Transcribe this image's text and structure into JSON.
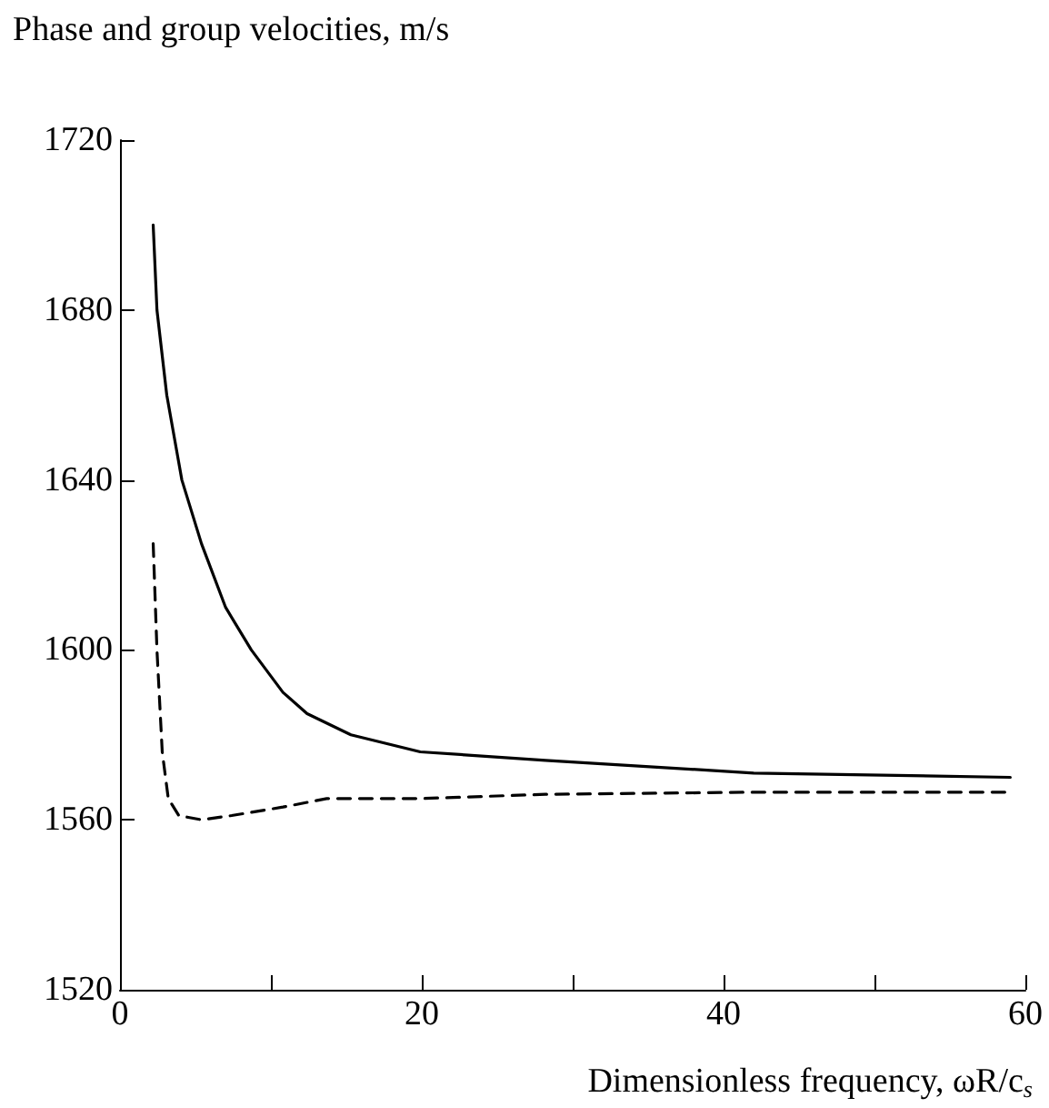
{
  "chart_data": {
    "type": "line",
    "ylabel": "Phase and group velocities, m/s",
    "xlabel": "Dimensionless frequency, ωR/c$_{s}$",
    "xlim": [
      0,
      60
    ],
    "xticks": [
      0,
      {
        "value": 10,
        "label": null
      },
      20,
      {
        "value": 30,
        "label": null
      },
      40,
      {
        "value": 50,
        "label": null
      },
      60
    ],
    "ylim": [
      1520,
      1720
    ],
    "yticks": [
      1520,
      1560,
      1600,
      1640,
      1680,
      1720
    ],
    "grid": false,
    "marker": "none",
    "series": [
      {
        "color": "#000000",
        "line_style": "solid",
        "x": [
          2.2,
          2.45,
          3.1,
          4.1,
          5.4,
          7.0,
          8.7,
          10.8,
          12.4,
          15.3,
          19.9,
          28.2,
          42,
          59
        ],
        "values": [
          1700,
          1680,
          1660,
          1640,
          1625,
          1610,
          1600,
          1590,
          1585,
          1580,
          1576,
          1574,
          1571,
          1570
        ]
      },
      {
        "color": "#000000",
        "line_style": "dashed",
        "x": [
          2.2,
          2.45,
          2.8,
          3.2,
          3.9,
          5.4,
          7.4,
          10.8,
          13.7,
          19.9,
          28.2,
          42,
          59
        ],
        "values": [
          1625,
          1600,
          1576,
          1565,
          1561,
          1560,
          1561,
          1563,
          1565,
          1565,
          1566,
          1566.5,
          1566.5
        ]
      }
    ]
  }
}
